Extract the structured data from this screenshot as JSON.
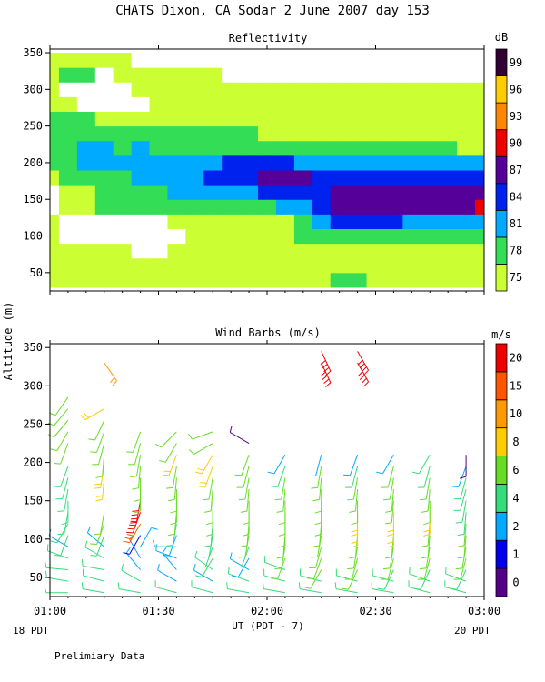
{
  "figure": {
    "title": "CHATS Dixon, CA  Sodar   2 June 2007  day 153",
    "ylabel": "Altitude (m)",
    "xlabel": "UT  (PDT - 7)",
    "left_note": "18 PDT",
    "right_note": "20 PDT",
    "footer": "Prelimiary Data",
    "x_ticks": [
      "01:00",
      "01:30",
      "02:00",
      "02:30",
      "03:00"
    ]
  },
  "chart_data": [
    {
      "type": "heatmap",
      "title": "Reflectivity",
      "colorbar_label": "dB",
      "y_ticks": [
        50,
        100,
        150,
        200,
        250,
        300,
        350
      ],
      "ylim": [
        25,
        355
      ],
      "xlim": [
        "01:00",
        "03:00"
      ],
      "levels": [
        {
          "label": "75",
          "color": "#ccff33"
        },
        {
          "label": "78",
          "color": "#33dd55"
        },
        {
          "label": "81",
          "color": "#00aaff"
        },
        {
          "label": "84",
          "color": "#0022ee"
        },
        {
          "label": "87",
          "color": "#550099"
        },
        {
          "label": "90",
          "color": "#ee0000"
        },
        {
          "label": "93",
          "color": "#ff8800"
        },
        {
          "label": "96",
          "color": "#ffcc00"
        },
        {
          "label": "99",
          "color": "#330033"
        }
      ],
      "times_hours": [
        1.0,
        1.0833,
        1.1667,
        1.25,
        1.3333,
        1.4167,
        1.5,
        1.5833,
        1.6667,
        1.75,
        1.8333,
        1.9167,
        2.0,
        2.0833,
        2.1667,
        2.25,
        2.3333,
        2.4167,
        2.5,
        2.5833,
        2.6667,
        2.75,
        2.8333,
        2.9167,
        3.0
      ],
      "altitudes_m": [
        40,
        60,
        80,
        100,
        120,
        140,
        160,
        180,
        200,
        220,
        240,
        260,
        280,
        300,
        320,
        340
      ],
      "values_db": [
        [
          77,
          77,
          77,
          77,
          77,
          77,
          76,
          76,
          77,
          77,
          77,
          76,
          76,
          76,
          76,
          76,
          80,
          80,
          76,
          76,
          76,
          76,
          76,
          76,
          76
        ],
        [
          77,
          77,
          77,
          77,
          77,
          76,
          76,
          76,
          76,
          76,
          76,
          76,
          77,
          77,
          77,
          77,
          77,
          77,
          77,
          77,
          77,
          76,
          76,
          76,
          76
        ],
        [
          76,
          76,
          76,
          76,
          76,
          74,
          74,
          76,
          76,
          76,
          76,
          76,
          77,
          77,
          77,
          77,
          77,
          77,
          77,
          77,
          77,
          77,
          77,
          76,
          76
        ],
        [
          76,
          74,
          74,
          74,
          74,
          74,
          74,
          74,
          76,
          76,
          76,
          76,
          77,
          77,
          78,
          79,
          79,
          80,
          80,
          80,
          80,
          80,
          80,
          80,
          80
        ],
        [
          76,
          74,
          74,
          74,
          74,
          74,
          74,
          76,
          76,
          76,
          77,
          77,
          77,
          77,
          78,
          82,
          84,
          84,
          84,
          84,
          82,
          82,
          82,
          82,
          82
        ],
        [
          75,
          77,
          77,
          78,
          78,
          78,
          78,
          79,
          79,
          80,
          80,
          80,
          80,
          82,
          83,
          85,
          87,
          87,
          87,
          87,
          87,
          87,
          87,
          88,
          90
        ],
        [
          75,
          77,
          77,
          78,
          79,
          80,
          80,
          81,
          82,
          82,
          83,
          83,
          84,
          85,
          86,
          86,
          87,
          87,
          87,
          87,
          87,
          87,
          87,
          87,
          87
        ],
        [
          77,
          78,
          79,
          80,
          80,
          81,
          81,
          82,
          83,
          85,
          85,
          85,
          87,
          87,
          87,
          86,
          86,
          86,
          85,
          84,
          84,
          84,
          84,
          84,
          84
        ],
        [
          78,
          79,
          83,
          81,
          82,
          81,
          82,
          82,
          82,
          83,
          84,
          84,
          84,
          84,
          83,
          82,
          82,
          82,
          82,
          82,
          81,
          81,
          81,
          81,
          81
        ],
        [
          78,
          80,
          82,
          82,
          80,
          81,
          80,
          80,
          80,
          80,
          80,
          80,
          80,
          80,
          79,
          79,
          79,
          79,
          79,
          79,
          78,
          78,
          79,
          77,
          77
        ],
        [
          78,
          79,
          79,
          79,
          79,
          79,
          78,
          78,
          78,
          78,
          78,
          78,
          77,
          77,
          77,
          77,
          77,
          77,
          76,
          76,
          76,
          76,
          76,
          76,
          76
        ],
        [
          78,
          78,
          78,
          76,
          76,
          76,
          76,
          76,
          76,
          76,
          77,
          76,
          76,
          76,
          76,
          76,
          76,
          76,
          76,
          76,
          76,
          76,
          76,
          76,
          76
        ],
        [
          77,
          77,
          74,
          74,
          74,
          74,
          76,
          76,
          76,
          76,
          76,
          76,
          76,
          76,
          76,
          76,
          76,
          76,
          76,
          76,
          76,
          76,
          76,
          76,
          76
        ],
        [
          76,
          74,
          74,
          74,
          74,
          76,
          77,
          76,
          76,
          76,
          76,
          76,
          76,
          76,
          76,
          76,
          76,
          76,
          76,
          76,
          76,
          76,
          76,
          76,
          76
        ],
        [
          76,
          78,
          78,
          74,
          76,
          76,
          76,
          76,
          76,
          76,
          74,
          74,
          74,
          74,
          74,
          74,
          74,
          74,
          74,
          74,
          74,
          74,
          74,
          74,
          74
        ],
        [
          76,
          76,
          76,
          76,
          76,
          74,
          74,
          74,
          74,
          74,
          74,
          74,
          74,
          74,
          74,
          74,
          74,
          74,
          74,
          74,
          74,
          74,
          74,
          74,
          74
        ]
      ]
    },
    {
      "type": "scatter",
      "title": "Wind Barbs (m/s)",
      "colorbar_label": "m/s",
      "y_ticks": [
        50,
        100,
        150,
        200,
        250,
        300,
        350
      ],
      "ylim": [
        25,
        355
      ],
      "xlim": [
        "01:00",
        "03:00"
      ],
      "levels": [
        {
          "label": "0",
          "color": "#550088"
        },
        {
          "label": "1",
          "color": "#0000ee"
        },
        {
          "label": "2",
          "color": "#00aaff"
        },
        {
          "label": "4",
          "color": "#33dd77"
        },
        {
          "label": "6",
          "color": "#66dd22"
        },
        {
          "label": "8",
          "color": "#ffcc00"
        },
        {
          "label": "10",
          "color": "#ff9900"
        },
        {
          "label": "15",
          "color": "#ff5500"
        },
        {
          "label": "20",
          "color": "#ee0000"
        }
      ],
      "level_edges_mps": [
        0,
        1,
        2,
        4,
        6,
        8,
        10,
        15,
        20,
        24
      ],
      "times_hours": [
        1.0833,
        1.25,
        1.4167,
        1.5833,
        1.75,
        1.9167,
        2.0833,
        2.25,
        2.4167,
        2.5833,
        2.75,
        2.9167
      ],
      "altitudes_m": [
        30,
        45,
        60,
        75,
        90,
        105,
        120,
        135,
        150,
        165,
        180,
        195,
        210,
        225,
        240,
        255,
        270,
        285,
        300,
        315,
        330,
        345
      ],
      "speed_mps": [
        [
          4,
          4,
          5,
          4,
          3,
          5,
          5,
          5,
          5,
          4,
          4,
          4,
          null,
          6,
          6,
          6,
          6,
          6,
          null,
          null,
          null,
          null
        ],
        [
          4,
          5,
          5,
          5,
          3,
          5,
          7,
          7,
          null,
          null,
          8,
          8,
          7,
          7,
          7,
          7,
          8,
          null,
          null,
          null,
          10,
          null
        ],
        [
          4,
          4,
          3,
          3,
          2,
          1,
          15,
          20,
          20,
          6,
          6,
          6,
          6,
          6,
          6,
          null,
          null,
          null,
          null,
          null,
          null,
          null
        ],
        [
          4,
          3,
          3,
          3,
          3,
          3,
          5,
          6,
          6,
          6,
          7,
          7,
          8,
          7,
          6,
          null,
          null,
          null,
          null,
          null,
          null,
          null
        ],
        [
          4,
          3,
          4,
          5,
          5,
          5,
          5,
          6,
          6,
          6,
          7,
          8,
          8,
          6,
          6,
          null,
          null,
          null,
          null,
          null,
          null,
          null
        ],
        [
          4,
          4,
          3,
          3,
          5,
          6,
          6,
          6,
          6,
          6,
          6,
          7,
          7,
          0,
          null,
          null,
          null,
          null,
          null,
          null,
          null,
          null
        ],
        [
          4,
          4,
          5,
          6,
          6,
          6,
          6,
          6,
          7,
          7,
          6,
          5,
          3,
          null,
          null,
          null,
          null,
          null,
          null,
          null,
          null,
          null
        ],
        [
          4,
          4,
          6,
          6,
          6,
          7,
          7,
          7,
          7,
          6,
          6,
          6,
          3,
          null,
          null,
          null,
          null,
          null,
          null,
          null,
          20,
          20
        ],
        [
          4,
          4,
          6,
          6,
          6,
          7,
          8,
          8,
          7,
          6,
          6,
          5,
          3,
          null,
          null,
          null,
          null,
          null,
          null,
          null,
          20,
          20
        ],
        [
          4,
          4,
          5,
          6,
          7,
          7,
          8,
          8,
          7,
          7,
          6,
          6,
          3,
          null,
          null,
          null,
          null,
          null,
          null,
          null,
          null,
          null
        ],
        [
          4,
          4,
          5,
          6,
          6,
          7,
          7,
          8,
          7,
          6,
          6,
          5,
          4,
          null,
          null,
          null,
          null,
          null,
          null,
          null,
          null,
          null
        ],
        [
          4,
          4,
          5,
          6,
          6,
          6,
          6,
          5,
          5,
          5,
          4,
          3,
          0,
          null,
          null,
          null,
          null,
          null,
          null,
          null,
          null,
          null
        ]
      ],
      "direction_deg": [
        [
          270,
          280,
          275,
          290,
          300,
          200,
          210,
          190,
          180,
          190,
          195,
          200,
          null,
          200,
          210,
          220,
          220,
          215,
          null,
          null,
          null,
          null
        ],
        [
          280,
          285,
          280,
          300,
          310,
          200,
          200,
          190,
          null,
          null,
          185,
          190,
          185,
          195,
          200,
          205,
          240,
          null,
          null,
          null,
          145,
          null
        ],
        [
          280,
          300,
          320,
          330,
          30,
          210,
          210,
          200,
          190,
          180,
          180,
          185,
          190,
          195,
          200,
          null,
          null,
          null,
          null,
          null,
          null,
          null
        ],
        [
          285,
          300,
          320,
          290,
          270,
          200,
          190,
          185,
          180,
          180,
          185,
          190,
          200,
          210,
          225,
          null,
          null,
          null,
          null,
          null,
          null,
          null
        ],
        [
          285,
          300,
          305,
          210,
          200,
          190,
          185,
          180,
          180,
          185,
          190,
          200,
          210,
          240,
          250,
          null,
          null,
          null,
          null,
          null,
          null,
          null
        ],
        [
          280,
          290,
          300,
          210,
          200,
          190,
          185,
          180,
          180,
          185,
          190,
          195,
          200,
          300,
          null,
          null,
          null,
          null,
          null,
          null,
          null,
          null
        ],
        [
          280,
          285,
          290,
          200,
          190,
          185,
          180,
          180,
          180,
          185,
          190,
          200,
          210,
          null,
          null,
          null,
          null,
          null,
          null,
          null,
          null,
          null
        ],
        [
          280,
          285,
          210,
          200,
          195,
          190,
          185,
          180,
          180,
          180,
          185,
          190,
          195,
          null,
          null,
          null,
          null,
          null,
          null,
          null,
          155,
          155
        ],
        [
          280,
          285,
          205,
          195,
          190,
          185,
          180,
          180,
          180,
          185,
          190,
          195,
          200,
          null,
          null,
          null,
          null,
          null,
          null,
          null,
          150,
          150
        ],
        [
          280,
          285,
          205,
          195,
          190,
          185,
          180,
          180,
          185,
          185,
          190,
          195,
          210,
          null,
          null,
          null,
          null,
          null,
          null,
          null,
          null,
          null
        ],
        [
          285,
          290,
          205,
          195,
          190,
          185,
          185,
          180,
          180,
          185,
          190,
          195,
          210,
          null,
          null,
          null,
          null,
          null,
          null,
          null,
          null,
          null
        ],
        [
          285,
          290,
          205,
          195,
          190,
          185,
          185,
          185,
          190,
          195,
          195,
          200,
          180,
          null,
          null,
          null,
          null,
          null,
          null,
          null,
          null,
          null
        ]
      ]
    }
  ]
}
